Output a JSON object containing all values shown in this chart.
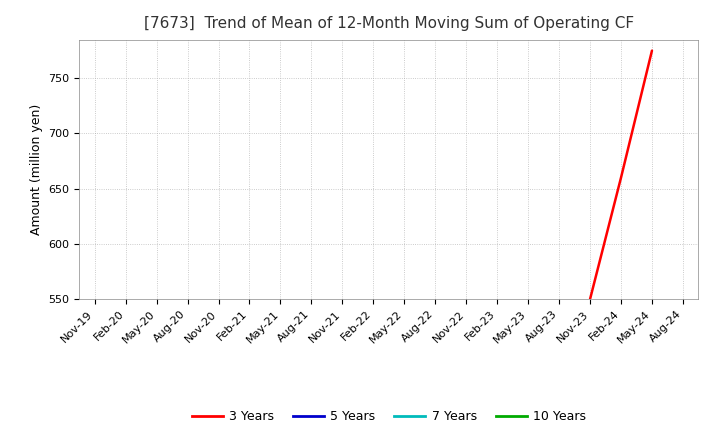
{
  "title": "[7673]  Trend of Mean of 12-Month Moving Sum of Operating CF",
  "ylabel": "Amount (million yen)",
  "ylim": [
    550,
    785
  ],
  "yticks": [
    550,
    600,
    650,
    700,
    750
  ],
  "background_color": "#ffffff",
  "grid_color": "#aaaaaa",
  "line_3y": {
    "label": "3 Years",
    "color": "#ff0000",
    "x": [
      "Nov-23",
      "Feb-24",
      "May-24"
    ],
    "y": [
      550,
      660,
      775
    ]
  },
  "line_5y": {
    "label": "5 Years",
    "color": "#0000cc",
    "x": [],
    "y": []
  },
  "line_7y": {
    "label": "7 Years",
    "color": "#00bbbb",
    "x": [],
    "y": []
  },
  "line_10y": {
    "label": "10 Years",
    "color": "#00aa00",
    "x": [],
    "y": []
  },
  "x_tick_labels": [
    "Nov-19",
    "Feb-20",
    "May-20",
    "Aug-20",
    "Nov-20",
    "Feb-21",
    "May-21",
    "Aug-21",
    "Nov-21",
    "Feb-22",
    "May-22",
    "Aug-22",
    "Nov-22",
    "Feb-23",
    "May-23",
    "Aug-23",
    "Nov-23",
    "Feb-24",
    "May-24",
    "Aug-24"
  ],
  "title_fontsize": 11,
  "ylabel_fontsize": 9,
  "tick_fontsize": 8,
  "legend_fontsize": 9
}
